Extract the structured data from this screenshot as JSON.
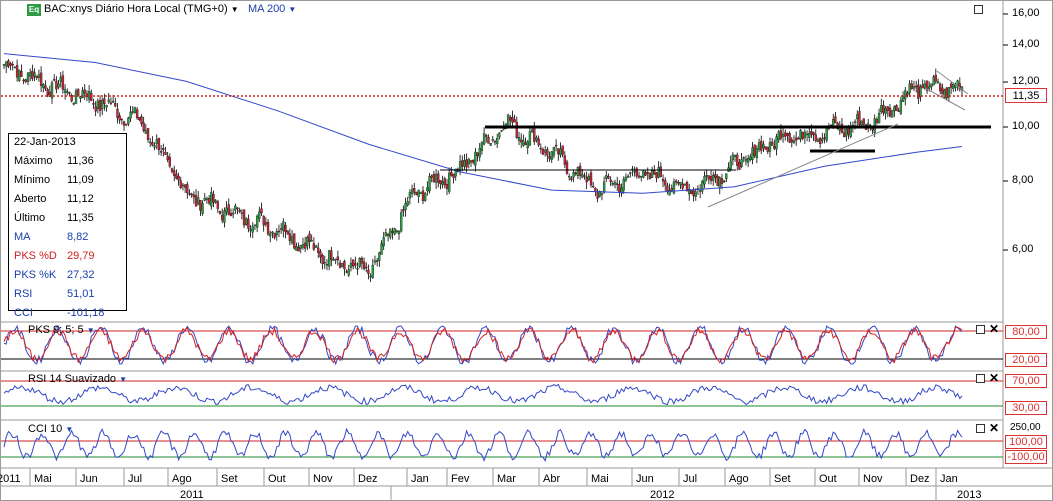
{
  "header": {
    "eq_badge": "Eq",
    "title": "BAC:xnys Diário Hora Local (TMG+0)",
    "ma_label": "MA 200"
  },
  "info_panel": {
    "date": "22-Jan-2013",
    "rows": [
      {
        "label": "Máximo",
        "value": "11,36",
        "color": "#000000"
      },
      {
        "label": "Mínimo",
        "value": "11,09",
        "color": "#000000"
      },
      {
        "label": "Aberto",
        "value": "11,12",
        "color": "#000000"
      },
      {
        "label": "Último",
        "value": "11,35",
        "color": "#000000"
      },
      {
        "label": "MA",
        "value": "8,82",
        "color": "#1a3ea8"
      },
      {
        "label": "PKS %D",
        "value": "29,79",
        "color": "#d32020"
      },
      {
        "label": "PKS %K",
        "value": "27,32",
        "color": "#1a3ea8"
      },
      {
        "label": "RSI",
        "value": "51,01",
        "color": "#1a3ea8"
      },
      {
        "label": "CCI",
        "value": "-101,18",
        "color": "#1a3ea8"
      }
    ]
  },
  "indicators": {
    "pks_label": "PKS 9; 5; 5",
    "rsi_label": "RSI 14 Suavizado",
    "cci_label": "CCI 10"
  },
  "price_axis": {
    "ticks": [
      "16,00",
      "14,00",
      "12,00",
      "10,00",
      "8,00",
      "6,00"
    ],
    "current_price": "11,35"
  },
  "pks_axis": [
    "80,00",
    "20,00"
  ],
  "rsi_axis": [
    "70,00",
    "30,00"
  ],
  "cci_axis": [
    "250,00",
    "100,00",
    "-100,00"
  ],
  "time_axis": {
    "months": [
      "2011",
      "Mai",
      "Jun",
      "Jul",
      "Ago",
      "Set",
      "Out",
      "Nov",
      "Dez",
      "Jan",
      "Fev",
      "Mar",
      "Abr",
      "Mai",
      "Jun",
      "Jul",
      "Ago",
      "Set",
      "Out",
      "Nov",
      "Dez",
      "Jan"
    ],
    "years": [
      "2011",
      "2012",
      "2013"
    ]
  },
  "colors": {
    "ma_line": "#3348c8",
    "up_candle": "#2e9a44",
    "down_candle": "#c0283a",
    "price_line": "#d32020",
    "pks_k": "#3348c8",
    "pks_d": "#d32020",
    "upper_band": "#d32020",
    "lower_band": "#1f8a2e"
  },
  "chart_data": {
    "type": "candlestick",
    "symbol": "BAC:xnys",
    "ylim": [
      4.3,
      16.3
    ],
    "y_scale": "log",
    "current_price": 11.35,
    "ma_period": 200,
    "close_approx": [
      {
        "date": "2011-04",
        "value": 12.6
      },
      {
        "date": "2011-05",
        "value": 11.5
      },
      {
        "date": "2011-06",
        "value": 10.8
      },
      {
        "date": "2011-07",
        "value": 9.8
      },
      {
        "date": "2011-08",
        "value": 7.2
      },
      {
        "date": "2011-09",
        "value": 6.6
      },
      {
        "date": "2011-10",
        "value": 6.2
      },
      {
        "date": "2011-11",
        "value": 5.5
      },
      {
        "date": "2011-12",
        "value": 5.1
      },
      {
        "date": "2012-01",
        "value": 7.2
      },
      {
        "date": "2012-02",
        "value": 8.0
      },
      {
        "date": "2012-03",
        "value": 9.8
      },
      {
        "date": "2012-04",
        "value": 8.6
      },
      {
        "date": "2012-05",
        "value": 7.3
      },
      {
        "date": "2012-06",
        "value": 7.9
      },
      {
        "date": "2012-07",
        "value": 7.3
      },
      {
        "date": "2012-08",
        "value": 8.1
      },
      {
        "date": "2012-09",
        "value": 9.2
      },
      {
        "date": "2012-10",
        "value": 9.4
      },
      {
        "date": "2012-11",
        "value": 9.8
      },
      {
        "date": "2012-12",
        "value": 11.4
      },
      {
        "date": "2013-01",
        "value": 11.35
      }
    ],
    "ma200_approx": [
      {
        "date": "2011-04",
        "value": 13.2
      },
      {
        "date": "2011-06",
        "value": 12.7
      },
      {
        "date": "2011-08",
        "value": 11.7
      },
      {
        "date": "2011-10",
        "value": 10.3
      },
      {
        "date": "2011-12",
        "value": 8.9
      },
      {
        "date": "2012-02",
        "value": 7.9
      },
      {
        "date": "2012-04",
        "value": 7.3
      },
      {
        "date": "2012-06",
        "value": 7.2
      },
      {
        "date": "2012-08",
        "value": 7.4
      },
      {
        "date": "2012-10",
        "value": 8.1
      },
      {
        "date": "2012-12",
        "value": 8.6
      },
      {
        "date": "2013-01",
        "value": 8.82
      }
    ],
    "pks_levels": [
      80,
      20
    ],
    "rsi_levels": [
      70,
      30
    ],
    "cci_levels": [
      100,
      -100
    ]
  }
}
